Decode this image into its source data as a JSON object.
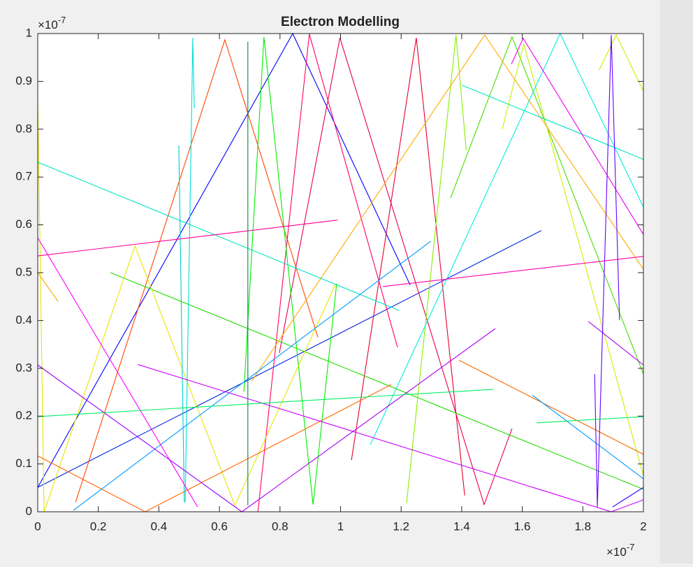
{
  "chart_data": {
    "type": "line",
    "title": "Electron Modelling",
    "xlim": [
      0,
      2
    ],
    "ylim": [
      0,
      1
    ],
    "xticks": [
      0,
      0.2,
      0.4,
      0.6,
      0.8,
      1,
      1.2,
      1.4,
      1.6,
      1.8,
      2
    ],
    "yticks": [
      0,
      0.1,
      0.2,
      0.3,
      0.4,
      0.5,
      0.6,
      0.7,
      0.8,
      0.9,
      1
    ],
    "x_exponent": {
      "base": "×10",
      "power": "-7"
    },
    "y_exponent": {
      "base": "×10",
      "power": "-7"
    },
    "grid": false,
    "series": [
      {
        "color": "#0000ff",
        "x": [
          0,
          0.842,
          1.23
        ],
        "values": [
          0.051,
          1.0,
          0.474
        ]
      },
      {
        "color": "#0022dd",
        "x": [
          0,
          1.663
        ],
        "values": [
          0.051,
          0.588
        ]
      },
      {
        "color": "#ff4500",
        "x": [
          0.125,
          0.618,
          0.925
        ],
        "values": [
          0.02,
          0.987,
          0.365
        ]
      },
      {
        "color": "#e6002e",
        "x": [
          1.036,
          1.25,
          1.41
        ],
        "values": [
          0.108,
          0.991,
          0.034
        ]
      },
      {
        "color": "#ff0066",
        "x": [
          0.727,
          0.897,
          1.188
        ],
        "values": [
          0,
          0.999,
          0.344
        ]
      },
      {
        "color": "#e60050",
        "x": [
          0.798,
          0.998,
          1.474,
          1.566
        ],
        "values": [
          0.332,
          0.991,
          0.015,
          0.174
        ]
      },
      {
        "color": "#00ee00",
        "x": [
          0.681,
          0.747,
          0.909,
          0.987
        ],
        "values": [
          0.251,
          0.993,
          0.015,
          0.477
        ]
      },
      {
        "color": "#22dd00",
        "x": [
          0.24,
          2.0
        ],
        "values": [
          0.5,
          0.047
        ]
      },
      {
        "color": "#88ee00",
        "x": [
          1.218,
          1.381,
          1.415
        ],
        "values": [
          0.018,
          0.997,
          0.756
        ]
      },
      {
        "color": "#44dd00",
        "x": [
          1.363,
          1.566,
          2.0
        ],
        "values": [
          0.656,
          0.993,
          0.288
        ]
      },
      {
        "color": "#e6e600",
        "x": [
          0,
          0.021,
          0.321,
          0.651,
          0.983
        ],
        "values": [
          0.865,
          0,
          0.556,
          0.013,
          0.475
        ]
      },
      {
        "color": "#ccee00",
        "x": [
          1.534,
          1.605,
          2.0
        ],
        "values": [
          0.8,
          0.978,
          0.076
        ]
      },
      {
        "color": "#ccee00",
        "x": [
          1.854,
          1.91,
          2.0
        ],
        "values": [
          0.924,
          0.997,
          0.88
        ]
      },
      {
        "color": "#ffaa00",
        "x": [
          0.706,
          1.476,
          2.0
        ],
        "values": [
          0.273,
          0.997,
          0.507
        ]
      },
      {
        "color": "#ffaa00",
        "x": [
          0,
          0.067
        ],
        "values": [
          0.5,
          0.44
        ]
      },
      {
        "color": "#ff6600",
        "x": [
          0,
          0.355,
          1.167
        ],
        "values": [
          0.117,
          0,
          0.266
        ]
      },
      {
        "color": "#ff6600",
        "x": [
          1.391,
          2.0
        ],
        "values": [
          0.317,
          0.12
        ]
      },
      {
        "color": "#00e5c0",
        "x": [
          0,
          1.193
        ],
        "values": [
          0.731,
          0.421
        ]
      },
      {
        "color": "#00e5c0",
        "x": [
          1.401,
          2.0
        ],
        "values": [
          0.892,
          0.737
        ]
      },
      {
        "color": "#00eedd",
        "x": [
          1.098,
          1.725,
          2.0
        ],
        "values": [
          0.14,
          1.0,
          0.637
        ]
      },
      {
        "color": "#00dddd",
        "x": [
          0.487,
          0.512,
          0.517
        ],
        "values": [
          0.02,
          0.991,
          0.844
        ]
      },
      {
        "color": "#00cccc",
        "x": [
          0.466,
          0.484
        ],
        "values": [
          0.766,
          0.02
        ]
      },
      {
        "color": "#0099ff",
        "x": [
          0.118,
          1.298
        ],
        "values": [
          0.003,
          0.566
        ]
      },
      {
        "color": "#0099ff",
        "x": [
          1.633,
          2.0
        ],
        "values": [
          0.244,
          0.069
        ]
      },
      {
        "color": "#ff00ff",
        "x": [
          0,
          0.528
        ],
        "values": [
          0.573,
          0.01
        ]
      },
      {
        "color": "#ff0099",
        "x": [
          0,
          0.99
        ],
        "values": [
          0.535,
          0.61
        ]
      },
      {
        "color": "#ff00aa",
        "x": [
          1.14,
          2.0
        ],
        "values": [
          0.471,
          0.534
        ]
      },
      {
        "color": "#ee00ee",
        "x": [
          1.564,
          1.603,
          2.0
        ],
        "values": [
          0.936,
          0.99,
          0.58
        ]
      },
      {
        "color": "#9900ff",
        "x": [
          0,
          0.674
        ],
        "values": [
          0.307,
          0
        ]
      },
      {
        "color": "#cc00ff",
        "x": [
          0.33,
          1.894,
          2.0
        ],
        "values": [
          0.308,
          0,
          0.025
        ]
      },
      {
        "color": "#aa00ee",
        "x": [
          0.674,
          1.511
        ],
        "values": [
          0,
          0.383
        ]
      },
      {
        "color": "#aa00ee",
        "x": [
          1.818,
          2.0
        ],
        "values": [
          0.398,
          0.307
        ]
      },
      {
        "color": "#6600ff",
        "x": [
          1.839,
          1.848,
          1.894,
          1.921
        ],
        "values": [
          0.288,
          0.01,
          0.997,
          0.401
        ]
      },
      {
        "color": "#3300ff",
        "x": [
          1.898,
          2.0
        ],
        "values": [
          0.01,
          0.051
        ]
      },
      {
        "color": "#008844",
        "x": [
          0.694,
          0.694
        ],
        "values": [
          0.983,
          0.013
        ]
      },
      {
        "color": "#00ee66",
        "x": [
          0,
          1.504
        ],
        "values": [
          0.199,
          0.256
        ]
      },
      {
        "color": "#00ee66",
        "x": [
          1.647,
          2.0
        ],
        "values": [
          0.186,
          0.199
        ]
      }
    ]
  }
}
